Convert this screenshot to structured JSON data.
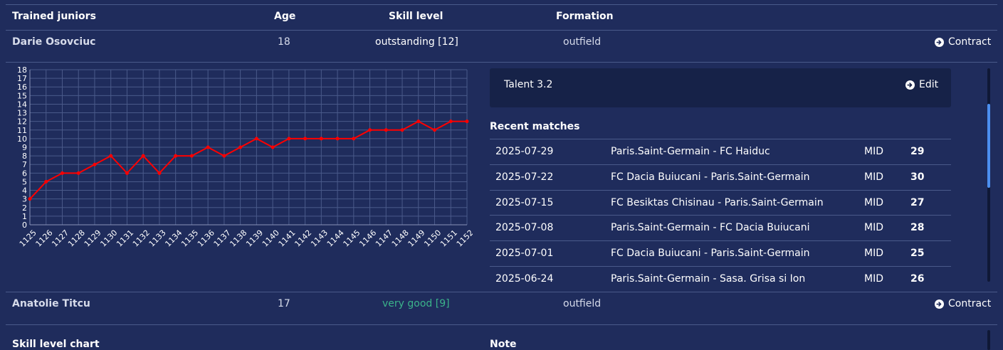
{
  "table": {
    "headers": {
      "name": "Trained juniors",
      "age": "Age",
      "skill": "Skill level",
      "formation": "Formation"
    },
    "players": [
      {
        "name": "Darie Osovciuc",
        "age": "18",
        "skill": "outstanding [12]",
        "formation": "outfield",
        "action": "Contract"
      },
      {
        "name": "Anatolie Titcu",
        "age": "17",
        "skill": "very good [9]",
        "formation": "outfield",
        "action": "Contract"
      }
    ]
  },
  "detail": {
    "talent": "Talent 3.2",
    "edit_label": "Edit",
    "recent_matches_title": "Recent matches",
    "matches": [
      {
        "date": "2025-07-29",
        "match": "Paris.Saint-Germain - FC Haiduc",
        "position": "MID",
        "score": "29"
      },
      {
        "date": "2025-07-22",
        "match": "FC Dacia Buiucani - Paris.Saint-Germain",
        "position": "MID",
        "score": "30"
      },
      {
        "date": "2025-07-15",
        "match": "FC Besiktas Chisinau - Paris.Saint-Germain",
        "position": "MID",
        "score": "27"
      },
      {
        "date": "2025-07-08",
        "match": "Paris.Saint-Germain - FC Dacia Buiucani",
        "position": "MID",
        "score": "28"
      },
      {
        "date": "2025-07-01",
        "match": "FC Dacia Buiucani - Paris.Saint-Germain",
        "position": "MID",
        "score": "25"
      },
      {
        "date": "2025-06-24",
        "match": "Paris.Saint-Germain - Sasa. Grisa si Ion",
        "position": "MID",
        "score": "26"
      }
    ]
  },
  "bottom": {
    "chart_title": "Skill level chart",
    "note_title": "Note"
  },
  "colors": {
    "background": "#1f2c5c",
    "line": "#ff0000",
    "grid": "#4a5a8a",
    "green": "#3bb38a",
    "scroll": "#4c8ff0"
  },
  "icons": {
    "contract": "arrow-circle-right-icon",
    "edit": "arrow-circle-right-icon"
  },
  "chart_data": {
    "type": "line",
    "x": [
      "1125",
      "1126",
      "1127",
      "1128",
      "1129",
      "1130",
      "1131",
      "1132",
      "1133",
      "1134",
      "1135",
      "1136",
      "1137",
      "1138",
      "1139",
      "1140",
      "1141",
      "1142",
      "1143",
      "1144",
      "1145",
      "1146",
      "1147",
      "1148",
      "1149",
      "1150",
      "1151",
      "1152"
    ],
    "series": [
      {
        "values": [
          3,
          5,
          6,
          6,
          7,
          8,
          6,
          8,
          6,
          8,
          8,
          9,
          8,
          9,
          10,
          9,
          10,
          10,
          10,
          10,
          10,
          11,
          11,
          11,
          12,
          11,
          12,
          12
        ]
      }
    ],
    "ylim": [
      0,
      18
    ],
    "yticks": [
      0,
      1,
      2,
      3,
      4,
      5,
      6,
      7,
      8,
      9,
      10,
      11,
      12,
      13,
      14,
      15,
      16,
      17,
      18
    ],
    "grid": true
  }
}
